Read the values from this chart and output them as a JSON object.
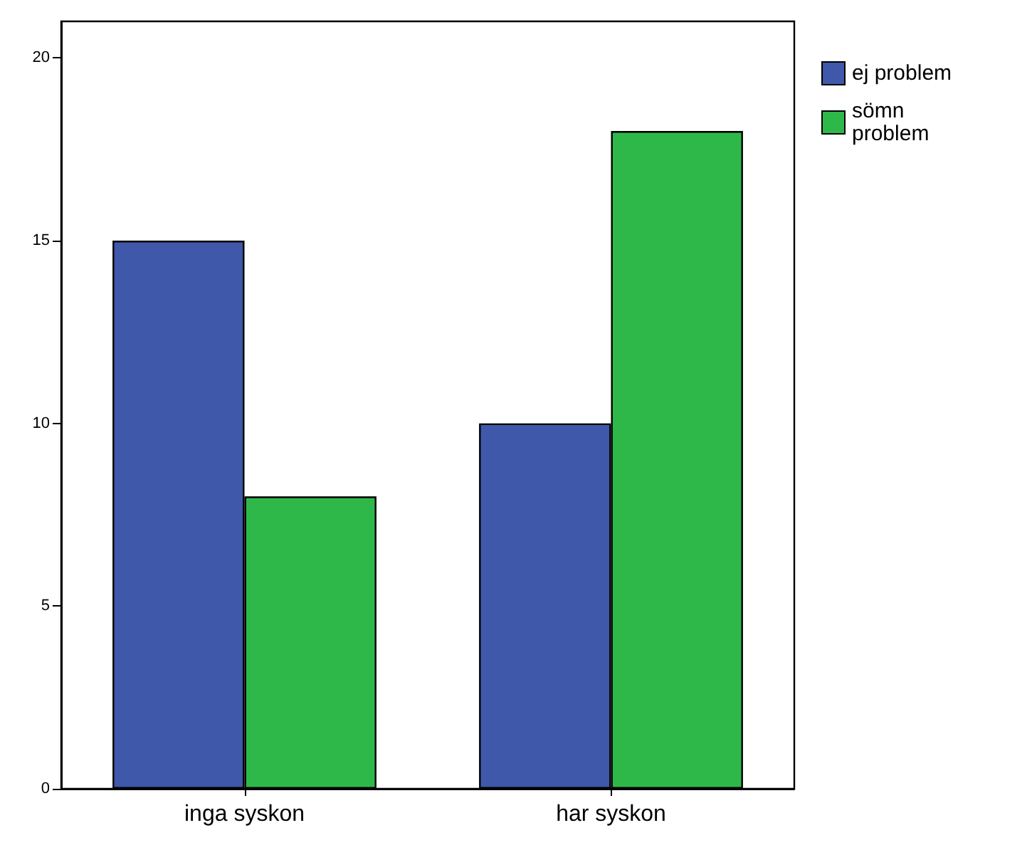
{
  "chart_data": {
    "type": "bar",
    "categories": [
      "inga syskon",
      "har syskon"
    ],
    "series": [
      {
        "name": "ej problem",
        "color": "#3f58aa",
        "values": [
          15,
          10
        ]
      },
      {
        "name": "sömn problem",
        "color": "#2fb84a",
        "values": [
          8,
          18
        ]
      }
    ],
    "ylim": [
      0,
      21
    ],
    "yticks": [
      0,
      5,
      10,
      15,
      20
    ],
    "grid": false,
    "legend": "top right"
  }
}
